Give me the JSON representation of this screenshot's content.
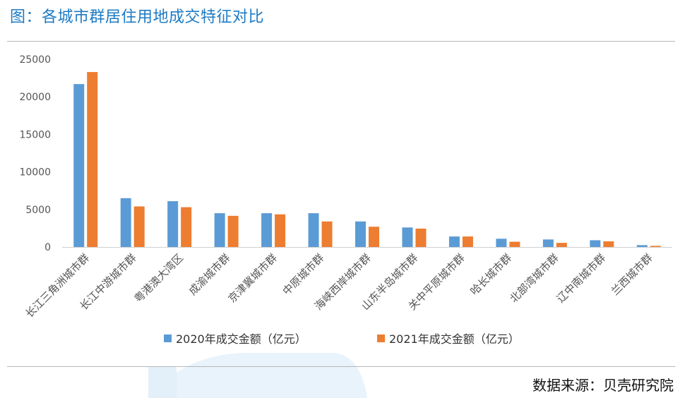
{
  "title": "图：各城市群居住用地成交特征对比",
  "source": "数据来源：贝壳研究院",
  "colors": {
    "series1": "#5b9bd5",
    "series2": "#ed7d31",
    "title": "#1e7bc4"
  },
  "chart_data": {
    "type": "bar",
    "title": "",
    "xlabel": "",
    "ylabel": "",
    "ylim": [
      0,
      25000
    ],
    "yticks": [
      0,
      5000,
      10000,
      15000,
      20000,
      25000
    ],
    "ytick_labels": [
      "0",
      "5000",
      "10000",
      "15000",
      "20000",
      "25000"
    ],
    "grid": false,
    "legend_position": "bottom",
    "categories": [
      "长江三角洲城市群",
      "长江中游城市群",
      "粤港澳大湾区",
      "成渝城市群",
      "京津冀城市群",
      "中原城市群",
      "海峡西岸城市群",
      "山东半岛城市群",
      "关中平原城市群",
      "哈长城市群",
      "北部湾城市群",
      "辽中南城市群",
      "兰西城市群"
    ],
    "series": [
      {
        "name": "2020年成交金额（亿元）",
        "values": [
          21700,
          6500,
          6100,
          4500,
          4500,
          4500,
          3400,
          2600,
          1400,
          1100,
          1000,
          900,
          250
        ]
      },
      {
        "name": "2021年成交金额（亿元）",
        "values": [
          23300,
          5400,
          5300,
          4150,
          4350,
          3400,
          2700,
          2450,
          1400,
          700,
          550,
          750,
          150
        ]
      }
    ]
  }
}
